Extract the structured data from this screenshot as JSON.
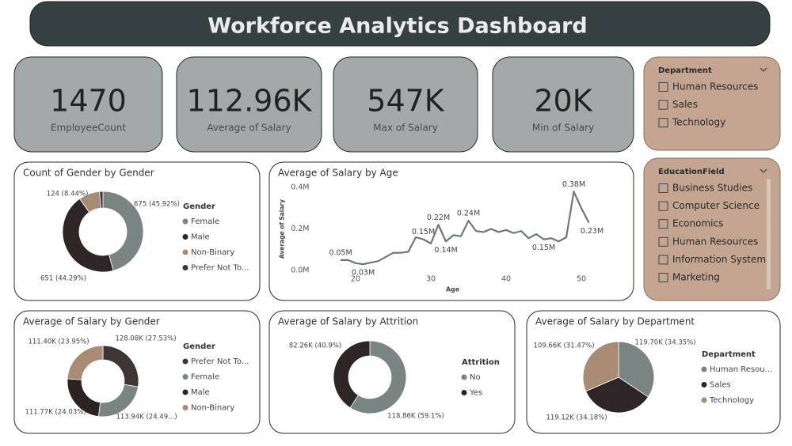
{
  "header": {
    "title": "Workforce Analytics Dashboard"
  },
  "kpis": [
    {
      "value": "1470",
      "label": "EmployeeCount"
    },
    {
      "value": "112.96K",
      "label": "Average of Salary"
    },
    {
      "value": "547K",
      "label": "Max of Salary"
    },
    {
      "value": "20K",
      "label": "Min of Salary"
    }
  ],
  "slicers": [
    {
      "title": "Department",
      "items": [
        "Human Resources",
        "Sales",
        "Technology"
      ]
    },
    {
      "title": "EducationField",
      "items": [
        "Business Studies",
        "Computer Science",
        "Economics",
        "Human Resources",
        "Information Systems",
        "Marketing"
      ]
    }
  ],
  "chart_data": [
    {
      "type": "donut",
      "title": "Count of Gender by Gender",
      "legend_title": "Gender",
      "categories": [
        "Female",
        "Male",
        "Non-Binary",
        "Prefer Not To..."
      ],
      "values": [
        675,
        651,
        124,
        20
      ],
      "value_labels": [
        "675 (45.92%)",
        "651 (44.29%)",
        "124 (8.44%)",
        null
      ],
      "colors": [
        "#7a8483",
        "#2e2626",
        "#a88b73",
        "#3d3535"
      ],
      "legend": true
    },
    {
      "type": "line",
      "title": "Average of Salary by Age",
      "x_label": "Age",
      "y_label": "Average of Salary",
      "x": [
        18,
        19,
        20,
        21,
        22,
        23,
        24,
        25,
        26,
        27,
        28,
        29,
        30,
        31,
        32,
        33,
        34,
        35,
        36,
        37,
        38,
        39,
        40,
        41,
        42,
        43,
        44,
        45,
        46,
        47,
        48,
        49,
        50,
        51
      ],
      "values": [
        50000,
        50000,
        35000,
        30000,
        38000,
        45000,
        65000,
        85000,
        85000,
        90000,
        160000,
        150000,
        130000,
        220000,
        140000,
        170000,
        165000,
        240000,
        190000,
        185000,
        200000,
        185000,
        195000,
        180000,
        190000,
        155000,
        175000,
        150000,
        155000,
        140000,
        160000,
        380000,
        300000,
        230000
      ],
      "value_labels": [
        "0.05M",
        null,
        null,
        "0.03M",
        null,
        null,
        null,
        null,
        null,
        null,
        null,
        "0.15M",
        null,
        "0.22M",
        "0.14M",
        null,
        null,
        "0.24M",
        null,
        null,
        null,
        null,
        null,
        null,
        null,
        null,
        null,
        "0.15M",
        null,
        null,
        null,
        "0.38M",
        null,
        "0.23M"
      ],
      "xlim": [
        17,
        53
      ],
      "xticks": [
        20,
        30,
        40,
        50
      ],
      "ylim": [
        0,
        400000
      ],
      "yticks": [
        {
          "value": 0,
          "label": "0.0M"
        },
        {
          "value": 200000,
          "label": "0.2M"
        },
        {
          "value": 400000,
          "label": "0.4M"
        }
      ],
      "color": "#6f7777",
      "grid": false
    },
    {
      "type": "donut",
      "title": "Average of Salary by Gender",
      "legend_title": "Gender",
      "categories": [
        "Prefer Not To...",
        "Female",
        "Male",
        "Non-Binary"
      ],
      "values": [
        128080,
        113940,
        111770,
        111400
      ],
      "value_labels": [
        "128.08K (27.53%)",
        "113.94K (24.49...)",
        "111.77K (24.03%)",
        "111.40K (23.95%)"
      ],
      "colors": [
        "#3d3535",
        "#7a8483",
        "#2b2222",
        "#a88b73"
      ],
      "legend": true
    },
    {
      "type": "donut",
      "title": "Average of Salary by Attrition",
      "legend_title": "Attrition",
      "categories": [
        "No",
        "Yes"
      ],
      "values": [
        118860,
        82260
      ],
      "value_labels": [
        "118.86K (59.1%)",
        "82.26K (40.9%)"
      ],
      "colors": [
        "#7a8483",
        "#2e2626"
      ],
      "legend": true
    },
    {
      "type": "pie",
      "title": "Average of Salary by Department",
      "legend_title": "Department",
      "categories": [
        "Human Resou...",
        "Sales",
        "Technology"
      ],
      "values": [
        119700,
        119120,
        109660
      ],
      "value_labels": [
        "119.70K (34.35%)",
        "119.12K (34.18%)",
        "109.66K (31.47%)"
      ],
      "colors": [
        "#7a8483",
        "#2e2626",
        "#a88b73"
      ],
      "legend": true
    }
  ]
}
